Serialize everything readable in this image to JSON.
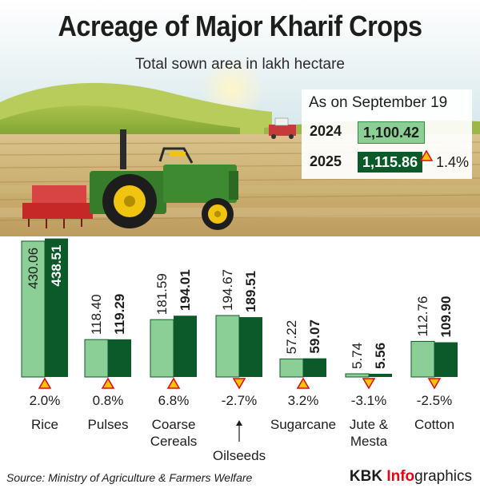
{
  "header": {
    "title": "Acreage of Major Kharif Crops",
    "subtitle": "Total sown area in lakh hectare"
  },
  "summary": {
    "as_on": "As on September 19",
    "rows": [
      {
        "year": "2024",
        "value": "1,100.42"
      },
      {
        "year": "2025",
        "value": "1,115.86"
      }
    ],
    "change": "1.4%",
    "change_direction": "up"
  },
  "chart_data": {
    "type": "bar",
    "title": "Acreage of Major Kharif Crops",
    "subtitle": "Total sown area in lakh hectare",
    "categories": [
      "Rice",
      "Pulses",
      "Coarse Cereals",
      "Oilseeds",
      "Sugarcane",
      "Jute & Mesta",
      "Cotton"
    ],
    "series": [
      {
        "values": [
          430.06,
          118.4,
          181.59,
          194.67,
          57.22,
          5.74,
          112.76
        ],
        "color": "#8ccf96"
      },
      {
        "values": [
          438.51,
          119.29,
          194.01,
          189.51,
          59.07,
          5.56,
          109.9
        ],
        "color": "#0c5a29"
      }
    ],
    "value_labels": [
      [
        "430.06",
        "118.40",
        "181.59",
        "194.67",
        "57.22",
        "5.74",
        "112.76"
      ],
      [
        "438.51",
        "119.29",
        "194.01",
        "189.51",
        "59.07",
        "5.56",
        "109.90"
      ]
    ],
    "changes": [
      "2.0%",
      "0.8%",
      "6.8%",
      "-2.7%",
      "3.2%",
      "-3.1%",
      "-2.5%"
    ],
    "change_directions": [
      "up",
      "up",
      "up",
      "down",
      "up",
      "down",
      "down"
    ],
    "ylim": [
      0,
      440
    ],
    "grid": false,
    "legend": "none"
  },
  "colors": {
    "series_2024": "#8ccf96",
    "series_2025": "#0c5a29",
    "marker_fill": "#f7c600",
    "marker_stroke": "#e30613"
  },
  "footer": {
    "source": "Source: Ministry of Agriculture & Farmers Welfare",
    "brand_kbk": "KBK ",
    "brand_info": "Info",
    "brand_graphics": "graphics"
  }
}
